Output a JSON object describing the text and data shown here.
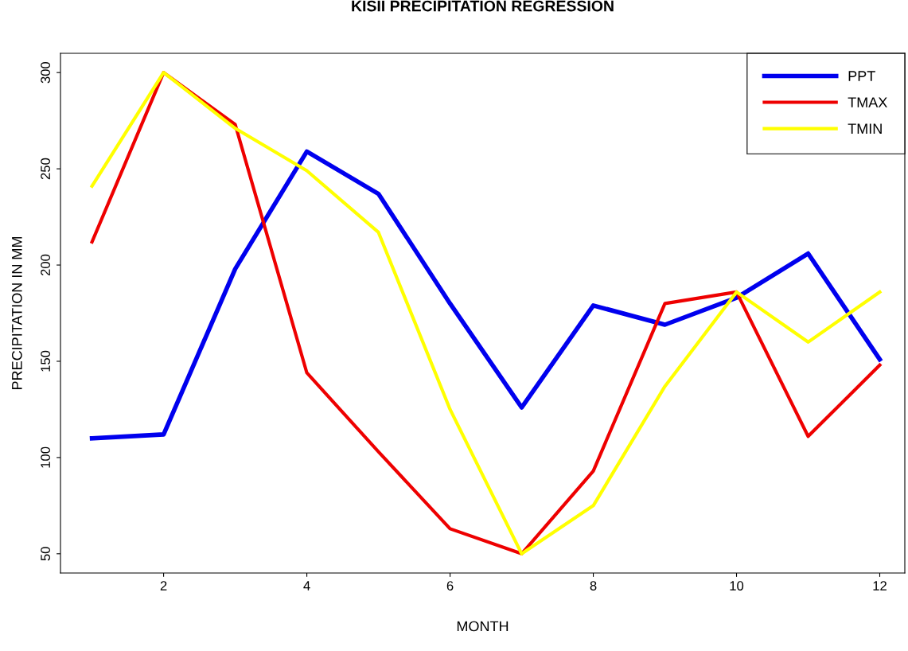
{
  "chart_data": {
    "type": "line",
    "title": "KISII PRECIPITATION REGRESSION",
    "xlabel": "MONTH",
    "ylabel": "PRECIPITATION IN MM",
    "x": [
      1,
      2,
      3,
      4,
      5,
      6,
      7,
      8,
      9,
      10,
      11,
      12
    ],
    "series": [
      {
        "name": "PPT",
        "color": "#0000ee",
        "values": [
          110,
          112,
          198,
          259,
          237,
          180,
          126,
          179,
          169,
          183,
          206,
          151
        ]
      },
      {
        "name": "TMAX",
        "color": "#ee0000",
        "values": [
          212,
          300,
          273,
          144,
          103,
          63,
          50,
          93,
          180,
          186,
          111,
          148
        ]
      },
      {
        "name": "TMIN",
        "color": "#ffff00",
        "values": [
          241,
          300,
          271,
          249,
          217,
          125,
          50,
          75,
          137,
          186,
          160,
          186
        ]
      }
    ],
    "xlim": [
      0.56,
      12.35
    ],
    "ylim": [
      40,
      310
    ],
    "xticks": [
      2,
      4,
      6,
      8,
      10,
      12
    ],
    "yticks": [
      50,
      100,
      150,
      200,
      250,
      300
    ],
    "grid": false,
    "legend": "top right",
    "marker": "none",
    "line_style": "solid"
  }
}
